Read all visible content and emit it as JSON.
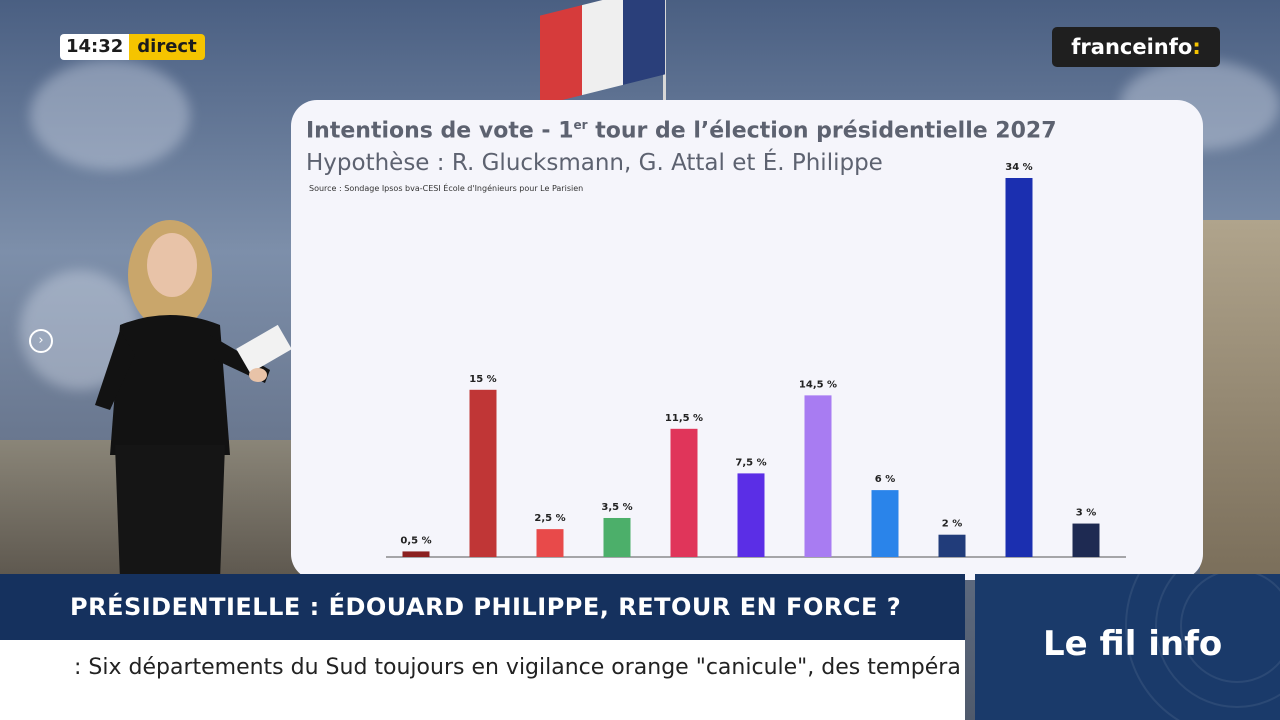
{
  "live_badge": {
    "time": "14:32",
    "label": "direct"
  },
  "channel_logo": {
    "name": "franceinfo",
    "suffix": ":"
  },
  "chart_panel": {
    "title_main": "Intentions de vote - 1",
    "title_sup": "er",
    "title_rest": " tour de l’élection présidentielle 2027",
    "subtitle": "Hypothèse : R. Glucksmann, G. Attal et É. Philippe",
    "source": "Source : Sondage Ipsos bva-CESI École d'Ingénieurs pour Le Parisien"
  },
  "chart_data": {
    "type": "bar",
    "title": "Intentions de vote - 1er tour de l’élection présidentielle 2027",
    "subtitle": "Hypothèse : R. Glucksmann, G. Attal et É. Philippe",
    "values": [
      0.5,
      15,
      2.5,
      3.5,
      11.5,
      7.5,
      14.5,
      6,
      2,
      34,
      3
    ],
    "labels": [
      "0,5 %",
      "15 %",
      "2,5 %",
      "3,5 %",
      "11,5 %",
      "7,5 %",
      "14,5 %",
      "6 %",
      "2 %",
      "34 %",
      "3 %"
    ],
    "colors": [
      "#8c2020",
      "#c03636",
      "#e84a4a",
      "#4caf6a",
      "#e0355a",
      "#5b2ee6",
      "#a87cf2",
      "#2a84ea",
      "#213c7a",
      "#1b2fb0",
      "#1e2a52"
    ],
    "ylim": [
      0,
      34
    ],
    "grid": false
  },
  "headline": "PRÉSIDENTIELLE : ÉDOUARD PHILIPPE, RETOUR EN FORCE ?",
  "ticker": ": Six départements du Sud toujours en vigilance orange \"canicule\", des tempéra",
  "fil_info": "Le fil info",
  "colors": {
    "headline_bg": "#15315e",
    "direct_yellow": "#f5c400",
    "fil_info_bg": "#1a3a6a"
  }
}
